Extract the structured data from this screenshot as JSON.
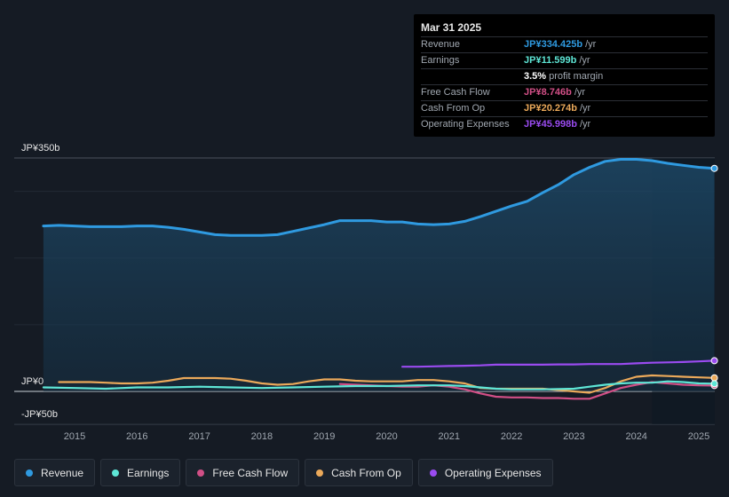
{
  "tooltip": {
    "date": "Mar 31 2025",
    "rows": [
      {
        "label": "Revenue",
        "value": "JP¥334.425b",
        "unit": "/yr",
        "color": "#2f9ae0"
      },
      {
        "label": "Earnings",
        "value": "JP¥11.599b",
        "unit": "/yr",
        "color": "#5ee6d6"
      },
      {
        "label": "",
        "value": "3.5%",
        "unit": "profit margin",
        "color": "#ffffff"
      },
      {
        "label": "Free Cash Flow",
        "value": "JP¥8.746b",
        "unit": "/yr",
        "color": "#d14f86"
      },
      {
        "label": "Cash From Op",
        "value": "JP¥20.274b",
        "unit": "/yr",
        "color": "#eba95a"
      },
      {
        "label": "Operating Expenses",
        "value": "JP¥45.998b",
        "unit": "/yr",
        "color": "#9a4bf0"
      }
    ]
  },
  "chart_data": {
    "type": "line",
    "title": "",
    "xlabel": "",
    "ylabel": "",
    "ylim": [
      -50,
      350
    ],
    "y_tick_labels": [
      {
        "value": 350,
        "label": "JP¥350b"
      },
      {
        "value": 0,
        "label": "JP¥0"
      },
      {
        "value": -50,
        "label": "-JP¥50b"
      }
    ],
    "x_range": [
      2014.45,
      2025.25
    ],
    "x_ticks": [
      2015,
      2016,
      2017,
      2018,
      2019,
      2020,
      2021,
      2022,
      2023,
      2024,
      2025
    ],
    "x_tick_labels": [
      "2015",
      "2016",
      "2017",
      "2018",
      "2019",
      "2020",
      "2021",
      "2022",
      "2023",
      "2024",
      "2025"
    ],
    "forecast_start": 2024.25,
    "series": [
      {
        "name": "Revenue",
        "color": "#2f9ae0",
        "filled": true,
        "x": [
          2014.5,
          2014.75,
          2015.0,
          2015.25,
          2015.5,
          2015.75,
          2016.0,
          2016.25,
          2016.5,
          2016.75,
          2017.0,
          2017.25,
          2017.5,
          2017.75,
          2018.0,
          2018.25,
          2018.5,
          2018.75,
          2019.0,
          2019.25,
          2019.5,
          2019.75,
          2020.0,
          2020.25,
          2020.5,
          2020.75,
          2021.0,
          2021.25,
          2021.5,
          2021.75,
          2022.0,
          2022.25,
          2022.5,
          2022.75,
          2023.0,
          2023.25,
          2023.5,
          2023.75,
          2024.0,
          2024.25,
          2024.5,
          2024.75,
          2025.0,
          2025.25
        ],
        "values": [
          248,
          249,
          248,
          247,
          247,
          247,
          248,
          248,
          246,
          243,
          239,
          235,
          234,
          234,
          234,
          235,
          240,
          245,
          250,
          256,
          256,
          256,
          254,
          254,
          251,
          250,
          251,
          255,
          262,
          270,
          278,
          285,
          298,
          310,
          325,
          336,
          345,
          348,
          348,
          346,
          342,
          339,
          336,
          334.425
        ]
      },
      {
        "name": "Earnings",
        "color": "#5ee6d6",
        "filled": false,
        "x": [
          2014.5,
          2015.0,
          2015.5,
          2016.0,
          2016.5,
          2017.0,
          2017.5,
          2018.0,
          2018.5,
          2019.0,
          2019.5,
          2020.0,
          2020.5,
          2021.0,
          2021.25,
          2021.5,
          2021.75,
          2022.0,
          2022.5,
          2023.0,
          2023.25,
          2023.5,
          2023.75,
          2024.0,
          2024.25,
          2024.5,
          2024.75,
          2025.0,
          2025.25
        ],
        "values": [
          6,
          5,
          4,
          6,
          6,
          7,
          6,
          5,
          6,
          7,
          8,
          8,
          9,
          9,
          8,
          6,
          4,
          3,
          3,
          4,
          7,
          10,
          12,
          13,
          13,
          15,
          14,
          12,
          11.599
        ]
      },
      {
        "name": "Free Cash Flow",
        "color": "#d14f86",
        "filled": false,
        "x": [
          2019.25,
          2019.5,
          2019.75,
          2020.0,
          2020.25,
          2020.5,
          2020.75,
          2021.0,
          2021.25,
          2021.5,
          2021.75,
          2022.0,
          2022.25,
          2022.5,
          2022.75,
          2023.0,
          2023.25,
          2023.5,
          2023.75,
          2024.0,
          2024.25,
          2024.5,
          2024.75,
          2025.0,
          2025.25
        ],
        "values": [
          11,
          10,
          9,
          8,
          7,
          7,
          9,
          7,
          3,
          -3,
          -8,
          -9,
          -9,
          -10,
          -10,
          -11,
          -11,
          -3,
          5,
          10,
          14,
          12,
          10,
          9,
          8.746
        ]
      },
      {
        "name": "Cash From Op",
        "color": "#eba95a",
        "filled": false,
        "x": [
          2014.75,
          2015.0,
          2015.25,
          2015.5,
          2015.75,
          2016.0,
          2016.25,
          2016.5,
          2016.75,
          2017.0,
          2017.25,
          2017.5,
          2017.75,
          2018.0,
          2018.25,
          2018.5,
          2018.75,
          2019.0,
          2019.25,
          2019.5,
          2019.75,
          2020.0,
          2020.25,
          2020.5,
          2020.75,
          2021.0,
          2021.25,
          2021.5,
          2021.75,
          2022.0,
          2022.25,
          2022.5,
          2022.75,
          2023.0,
          2023.25,
          2023.5,
          2023.75,
          2024.0,
          2024.25,
          2024.5,
          2024.75,
          2025.0,
          2025.25
        ],
        "values": [
          14,
          14,
          14,
          13,
          12,
          12,
          13,
          16,
          20,
          20,
          20,
          19,
          16,
          12,
          10,
          11,
          15,
          18,
          18,
          16,
          15,
          15,
          15,
          17,
          17,
          15,
          12,
          5,
          4,
          4,
          4,
          4,
          2,
          0,
          -2,
          5,
          15,
          22,
          24,
          23,
          22,
          21,
          20.274
        ]
      },
      {
        "name": "Operating Expenses",
        "color": "#9a4bf0",
        "filled": false,
        "x": [
          2020.25,
          2020.5,
          2020.75,
          2021.0,
          2021.25,
          2021.5,
          2021.75,
          2022.0,
          2022.25,
          2022.5,
          2022.75,
          2023.0,
          2023.25,
          2023.5,
          2023.75,
          2024.0,
          2024.25,
          2024.5,
          2024.75,
          2025.0,
          2025.25
        ],
        "values": [
          37,
          37,
          37.5,
          38,
          38.5,
          39,
          40,
          40,
          40,
          40,
          40.5,
          40.5,
          41,
          41,
          41,
          42,
          43,
          43.5,
          44,
          45,
          45.998
        ]
      }
    ]
  },
  "legend": [
    {
      "label": "Revenue",
      "color": "#2f9ae0"
    },
    {
      "label": "Earnings",
      "color": "#5ee6d6"
    },
    {
      "label": "Free Cash Flow",
      "color": "#d14f86"
    },
    {
      "label": "Cash From Op",
      "color": "#eba95a"
    },
    {
      "label": "Operating Expenses",
      "color": "#9a4bf0"
    }
  ]
}
